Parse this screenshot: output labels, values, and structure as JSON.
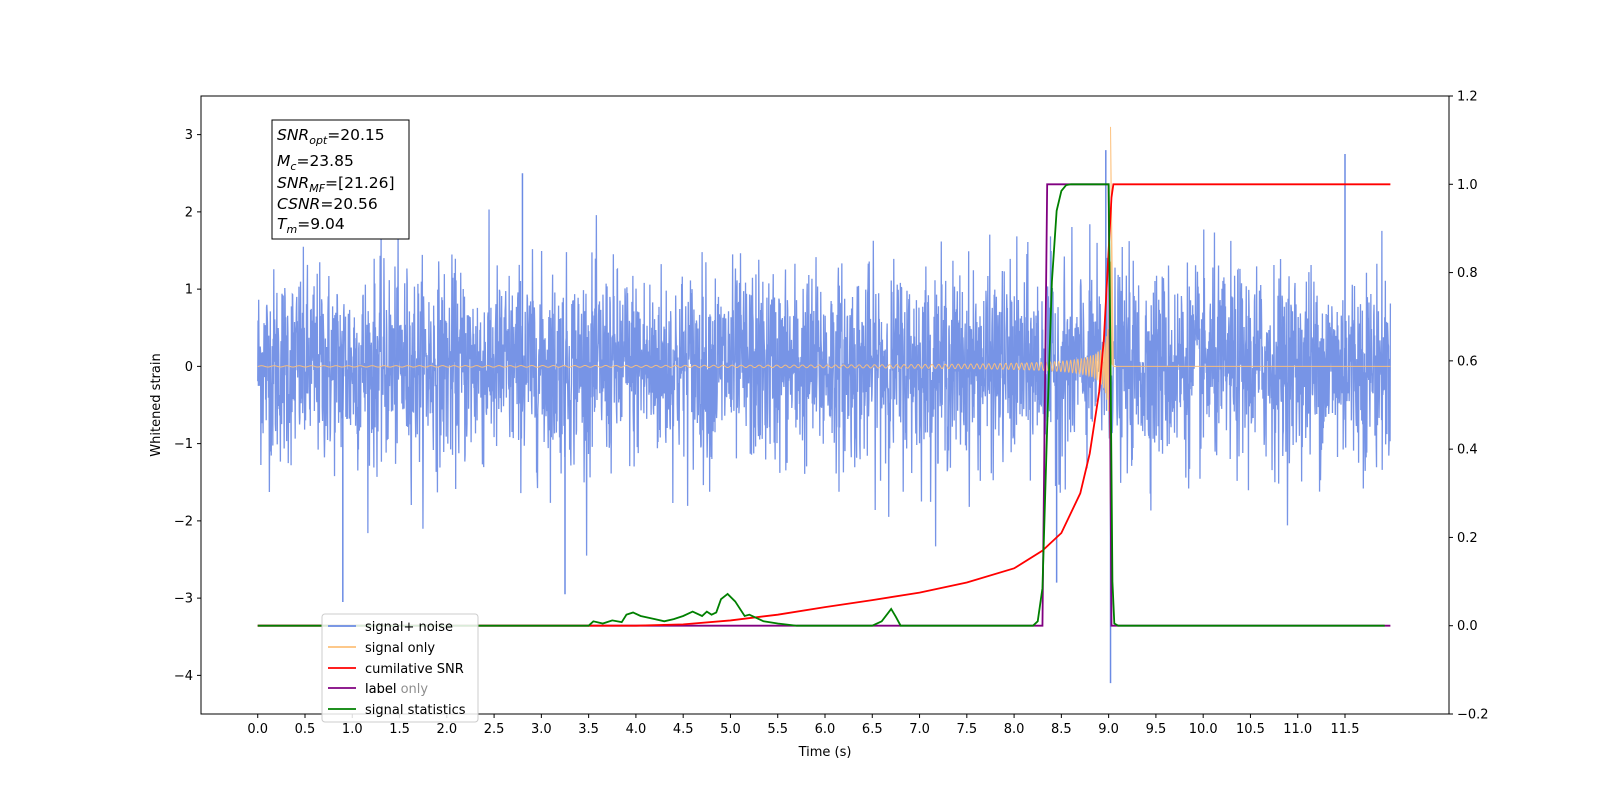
{
  "chart_data": {
    "type": "line",
    "title": "",
    "xlabel": "Time (s)",
    "ylabel": "Whitened strain",
    "y2label": "",
    "xlim": [
      -0.6,
      12.6
    ],
    "ylim": [
      -4.5,
      3.5
    ],
    "y2lim": [
      -0.2,
      1.2
    ],
    "x_ticks": [
      0.0,
      0.5,
      1.0,
      1.5,
      2.0,
      2.5,
      3.0,
      3.5,
      4.0,
      4.5,
      5.0,
      5.5,
      6.0,
      6.5,
      7.0,
      7.5,
      8.0,
      8.5,
      9.0,
      9.5,
      10.0,
      10.5,
      11.0,
      11.5
    ],
    "y_ticks": [
      -4,
      -3,
      -2,
      -1,
      0,
      1,
      2,
      3
    ],
    "y2_ticks": [
      -0.2,
      0.0,
      0.2,
      0.4,
      0.6,
      0.8,
      1.0,
      1.2
    ],
    "grid": false,
    "legend_placement": "lower-left",
    "annotation": {
      "snr_opt": "20.15",
      "mc": "23.85",
      "snr_mf": "[21.26]",
      "csnr": "20.56",
      "tm": "9.04"
    },
    "series": [
      {
        "name": "signal+ noise",
        "color": "#6b8be4",
        "axis": "left",
        "description_range": [
          -1.8,
          1.8
        ],
        "outliers": [
          [
            0.9,
            -3.05
          ],
          [
            2.8,
            2.5
          ],
          [
            3.25,
            -2.95
          ],
          [
            8.45,
            -2.8
          ],
          [
            8.97,
            2.8
          ],
          [
            9.02,
            -4.1
          ],
          [
            11.5,
            2.75
          ]
        ]
      },
      {
        "name": "signal only",
        "color": "#fdc07a",
        "axis": "left",
        "t_merger": 9.02,
        "peak": 3.1
      },
      {
        "name": "cumilative SNR",
        "color": "#ff0000",
        "axis": "right",
        "x": [
          0.0,
          4.0,
          4.5,
          5.0,
          5.5,
          6.0,
          6.5,
          7.0,
          7.5,
          8.0,
          8.3,
          8.5,
          8.7,
          8.8,
          8.9,
          8.95,
          9.0,
          9.03,
          9.05,
          11.98
        ],
        "y": [
          0.0,
          0.0,
          0.003,
          0.012,
          0.025,
          0.042,
          0.058,
          0.075,
          0.098,
          0.13,
          0.17,
          0.21,
          0.3,
          0.39,
          0.53,
          0.65,
          0.85,
          0.97,
          1.0,
          1.0
        ]
      },
      {
        "name": "label",
        "color": "#800080",
        "axis": "right",
        "x": [
          0.0,
          8.3,
          8.35,
          9.0,
          9.03,
          11.98
        ],
        "y": [
          0.0,
          0.0,
          1.0,
          1.0,
          0.0,
          0.0
        ]
      },
      {
        "name": "label only",
        "color": "#800080",
        "axis": "right",
        "hidden": true
      },
      {
        "name": "signal statistics",
        "color": "#008000",
        "axis": "right",
        "x": [
          0.0,
          3.5,
          3.55,
          3.65,
          3.75,
          3.85,
          3.9,
          3.97,
          4.05,
          4.2,
          4.3,
          4.4,
          4.5,
          4.6,
          4.7,
          4.75,
          4.8,
          4.85,
          4.9,
          4.97,
          5.05,
          5.15,
          5.2,
          5.3,
          5.35,
          5.5,
          5.7,
          6.5,
          6.6,
          6.7,
          6.75,
          6.8,
          6.85,
          8.2,
          8.25,
          8.3,
          8.35,
          8.4,
          8.45,
          8.5,
          8.55,
          8.6,
          9.0,
          9.02,
          9.04,
          9.06,
          9.1,
          11.92
        ],
        "y": [
          0.0,
          0.0,
          0.01,
          0.005,
          0.012,
          0.008,
          0.025,
          0.03,
          0.022,
          0.015,
          0.01,
          0.015,
          0.022,
          0.032,
          0.022,
          0.032,
          0.025,
          0.03,
          0.06,
          0.072,
          0.055,
          0.022,
          0.025,
          0.015,
          0.01,
          0.005,
          0.0,
          0.0,
          0.01,
          0.038,
          0.02,
          0.0,
          0.0,
          0.0,
          0.01,
          0.085,
          0.45,
          0.78,
          0.94,
          0.985,
          0.998,
          1.0,
          1.0,
          0.6,
          0.1,
          0.005,
          0.0,
          0.0
        ]
      }
    ]
  }
}
